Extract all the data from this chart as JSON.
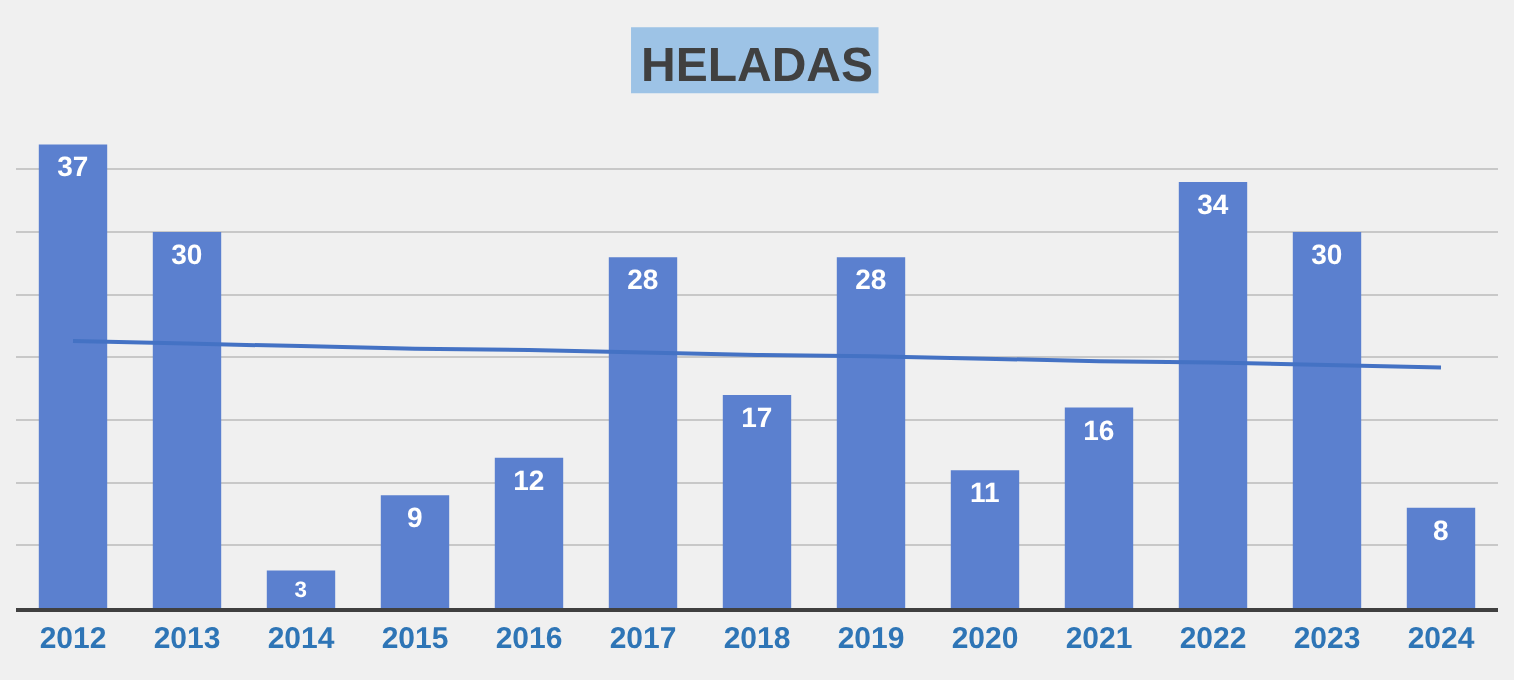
{
  "chart_data": {
    "type": "bar",
    "title": "HELADAS",
    "categories": [
      "2012",
      "2013",
      "2014",
      "2015",
      "2016",
      "2017",
      "2018",
      "2019",
      "2020",
      "2021",
      "2022",
      "2023",
      "2024"
    ],
    "series": [
      {
        "color": "#5b80cf",
        "values": [
          37,
          30,
          3,
          9,
          12,
          28,
          17,
          28,
          11,
          16,
          34,
          30,
          8
        ],
        "value_labels": [
          "37",
          "30",
          "3",
          "9",
          "12",
          "28",
          "17",
          "28",
          "11",
          "16",
          "34",
          "30",
          "8"
        ]
      },
      {
        "type": "line",
        "color": "#4472c4",
        "values": [
          21.3,
          21.1,
          20.9,
          20.7,
          20.6,
          20.4,
          20.2,
          20.1,
          19.9,
          19.7,
          19.6,
          19.4,
          19.2
        ]
      }
    ],
    "grid": "y",
    "tick_labels": "x"
  }
}
